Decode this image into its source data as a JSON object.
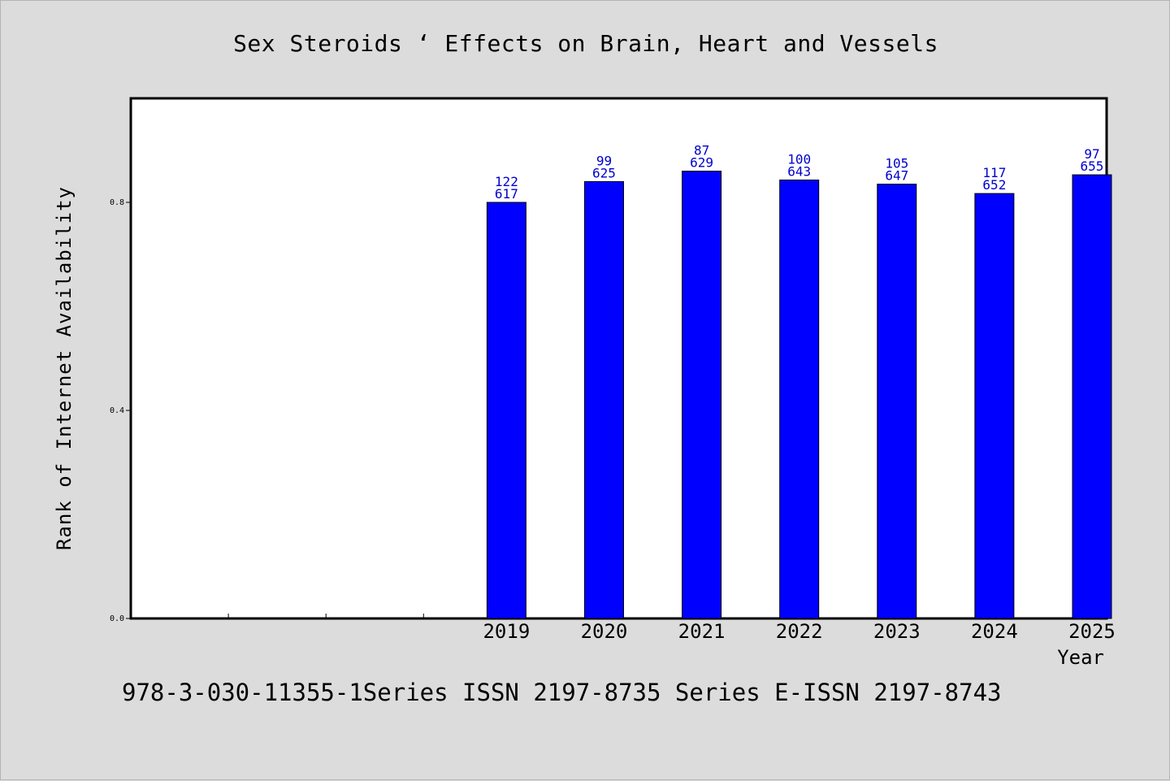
{
  "chart_data": {
    "type": "bar",
    "title": "Sex Steroids ‘ Effects on Brain, Heart and Vessels",
    "xlabel": "Year",
    "ylabel": "Rank of Internet Availability",
    "categories": [
      "",
      "",
      "",
      "2019",
      "2020",
      "2021",
      "2022",
      "2023",
      "2024",
      "2025"
    ],
    "values": [
      null,
      null,
      null,
      0.8,
      0.84,
      0.86,
      0.843,
      0.835,
      0.817,
      0.853
    ],
    "data_labels": [
      null,
      null,
      null,
      [
        "122",
        "617"
      ],
      [
        "99",
        "625"
      ],
      [
        "87",
        "629"
      ],
      [
        "100",
        "643"
      ],
      [
        "105",
        "647"
      ],
      [
        "117",
        "652"
      ],
      [
        "97",
        "655"
      ]
    ],
    "yticks": [
      "0.0",
      "0.4",
      "0.8"
    ],
    "ytick_values": [
      0.0,
      0.4,
      0.8
    ],
    "ylim": [
      0,
      1.0
    ],
    "grid": false,
    "colors": {
      "bar": "#0000ff",
      "label": "#0000cc",
      "plot_bg": "#ffffff",
      "page_bg": "#dcdcdc"
    }
  },
  "footer": "978-3-030-11355-1Series ISSN 2197-8735 Series E-ISSN 2197-8743"
}
